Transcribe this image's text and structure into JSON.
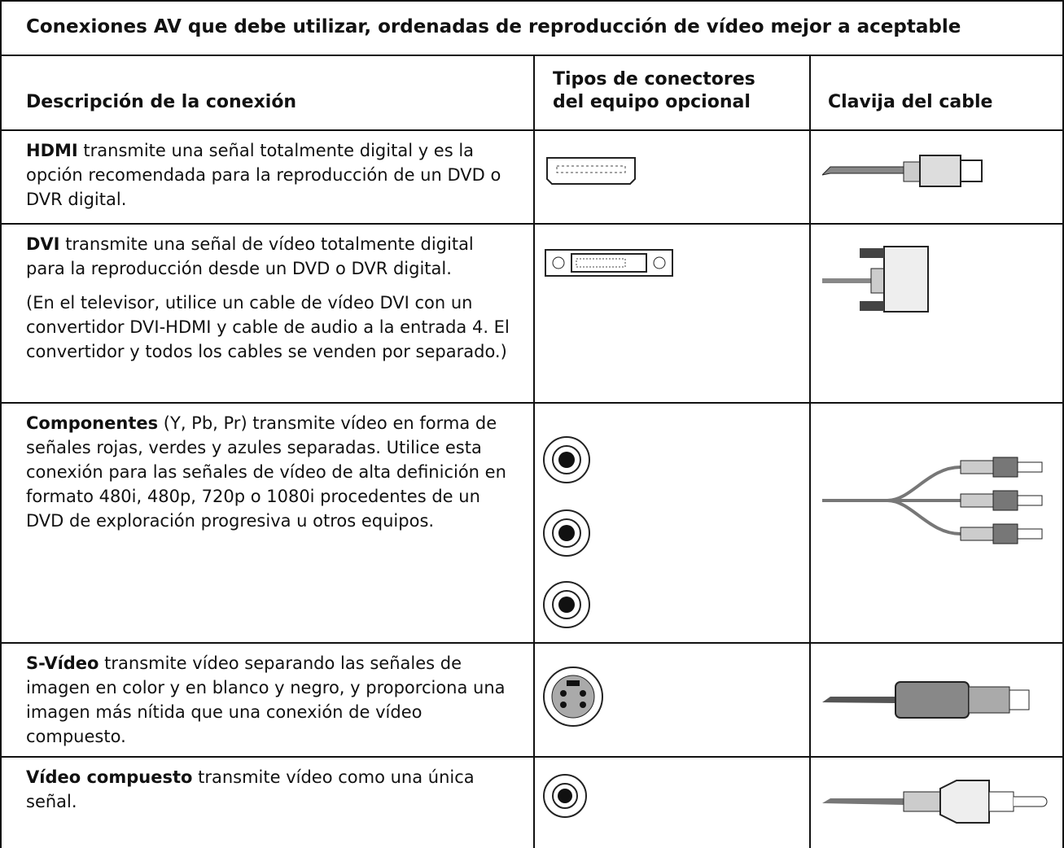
{
  "table": {
    "title": "Conexiones AV que debe utilizar, ordenadas de reproducción de vídeo mejor a aceptable",
    "headers": [
      "Descripción de la conexión",
      "Tipos de conectores del equipo opcional",
      "Clavija del cable"
    ],
    "rows": [
      {
        "lead": "HDMI",
        "text": "transmite una señal totalmente digital y es la opción recomendada para la reproducción de un DVD o DVR digital."
      },
      {
        "lead": "DVI",
        "text": "transmite una señal de vídeo totalmente digital para la reproducción desde un DVD o DVR digital.",
        "note": "(En el televisor, utilice un cable de vídeo DVI con un convertidor DVI-HDMI y cable de audio a la entrada 4. El convertidor y todos los cables se venden por separado.)"
      },
      {
        "lead": "Componentes",
        "text": "(Y, Pb, Pr) transmite vídeo en forma de señales rojas, verdes y azules separadas. Utilice esta conexión para las señales de vídeo de alta definición en formato 480i, 480p, 720p o 1080i procedentes de un DVD de exploración progresiva u otros equipos."
      },
      {
        "lead": "S-Vídeo",
        "text": "transmite vídeo separando las señales de imagen en color y en blanco y negro, y proporciona una imagen más nítida que una conexión de vídeo compuesto."
      },
      {
        "lead": "Vídeo compuesto",
        "text": "transmite vídeo como una única señal."
      }
    ]
  }
}
